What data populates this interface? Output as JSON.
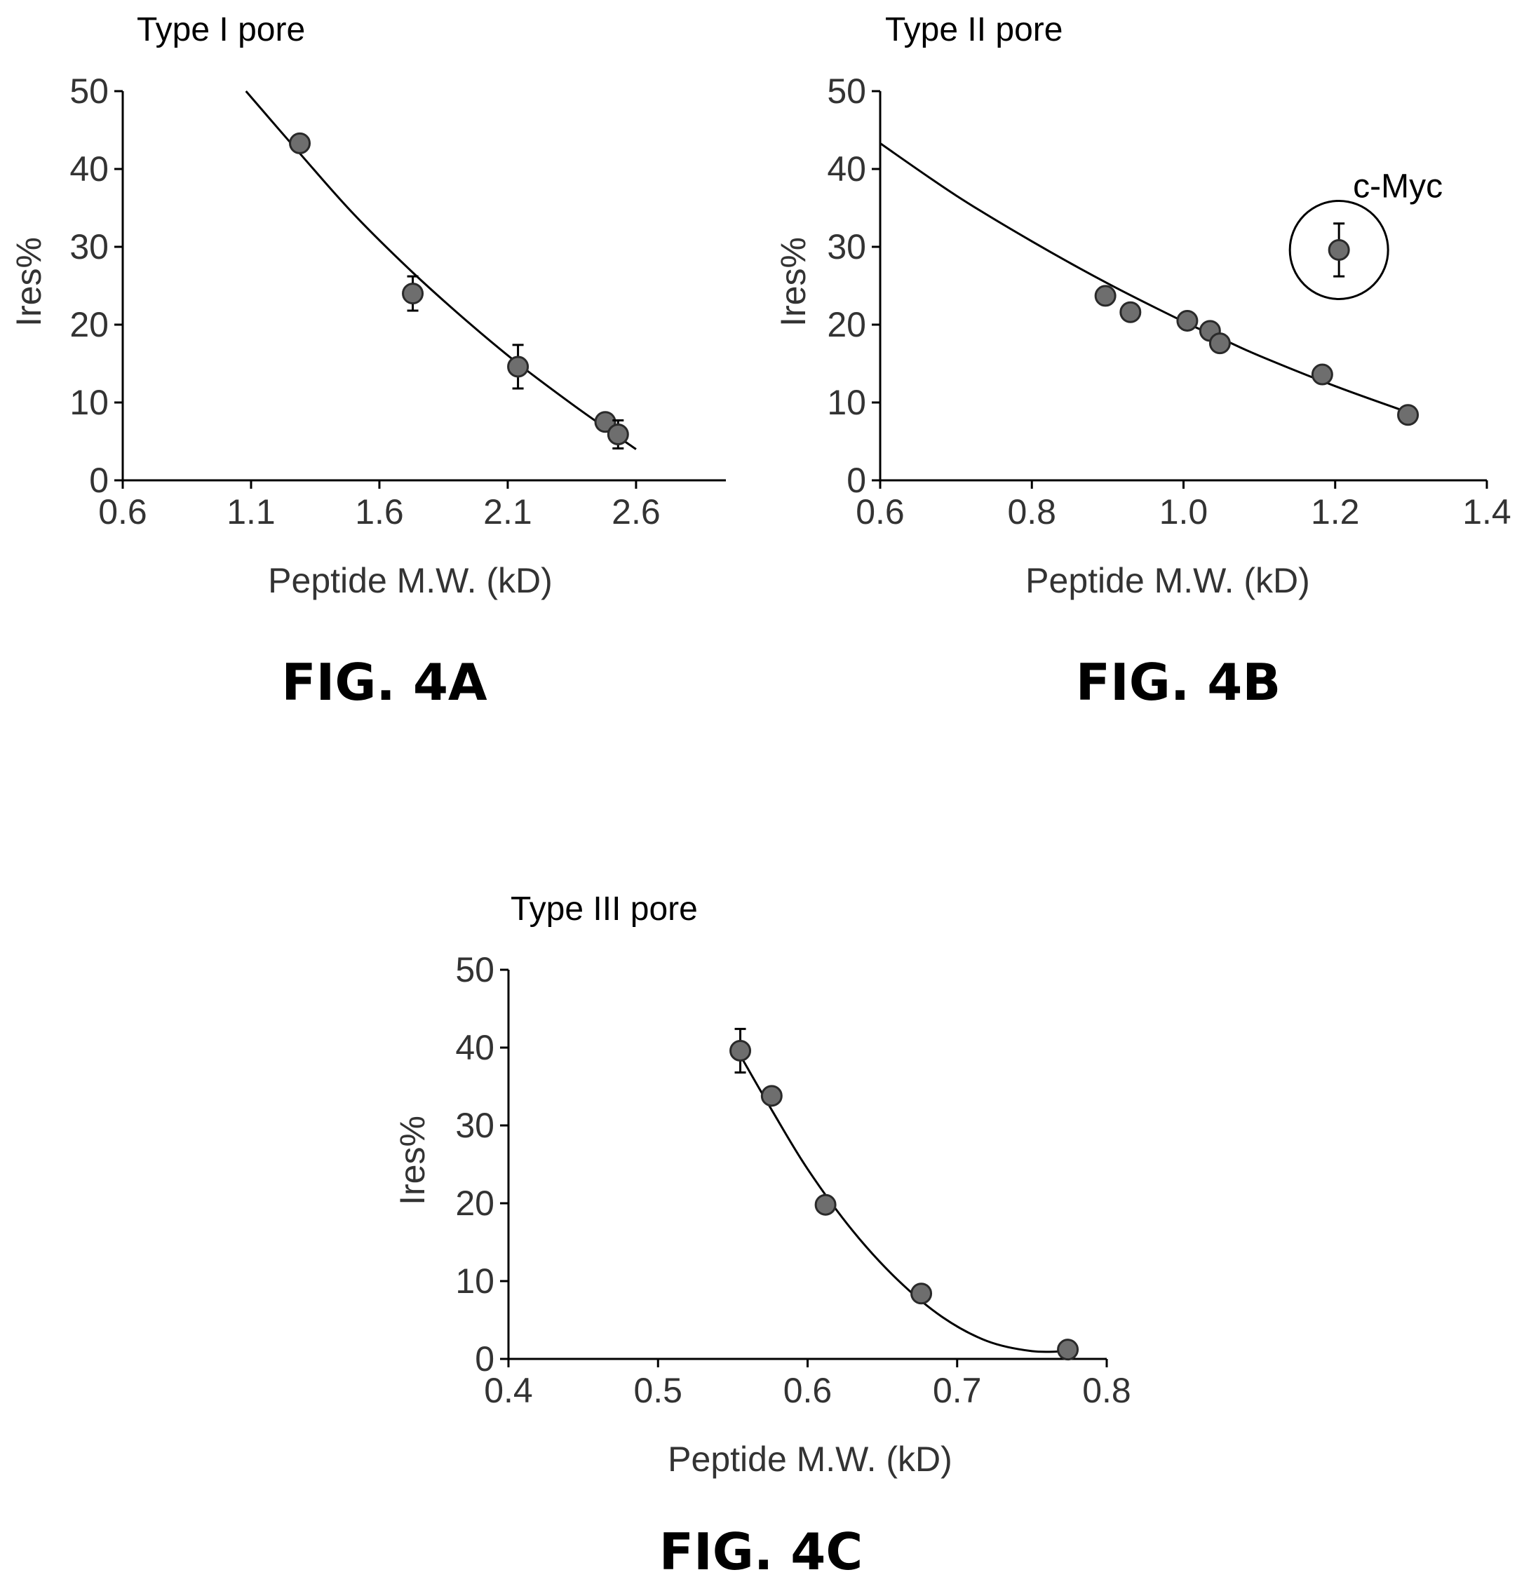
{
  "figures": [
    {
      "label": "FIG. 4A"
    },
    {
      "label": "FIG. 4B"
    },
    {
      "label": "FIG. 4C"
    }
  ],
  "chart_data": [
    {
      "type": "scatter",
      "title": "Type I pore",
      "xlabel": "Peptide M.W. (kD)",
      "ylabel": "Ires%",
      "xlim": [
        0.6,
        2.95
      ],
      "ylim": [
        0,
        50
      ],
      "xticks": [
        0.6,
        1.1,
        1.6,
        2.1,
        2.6
      ],
      "xtick_labels": [
        "0.6",
        "1.1",
        "1.6",
        "2.1",
        "2.6"
      ],
      "yticks": [
        0,
        10,
        20,
        30,
        40,
        50
      ],
      "ytick_labels": [
        "0",
        "10",
        "20",
        "30",
        "40",
        "50"
      ],
      "grid": false,
      "points": [
        {
          "x": 1.29,
          "y": 43.3,
          "err": 0.8
        },
        {
          "x": 1.73,
          "y": 24.0,
          "err": 2.2
        },
        {
          "x": 2.14,
          "y": 14.6,
          "err": 2.8
        },
        {
          "x": 2.48,
          "y": 7.5,
          "err": 0.8
        },
        {
          "x": 2.53,
          "y": 5.9,
          "err": 1.8
        }
      ],
      "fit": {
        "x": [
          1.08,
          1.29,
          1.5,
          1.73,
          1.95,
          2.14,
          2.35,
          2.53,
          2.6
        ],
        "y": [
          50.0,
          42.0,
          34.2,
          26.7,
          20.2,
          15.0,
          9.8,
          5.6,
          4.0
        ]
      },
      "annotations": []
    },
    {
      "type": "scatter",
      "title": "Type II pore",
      "xlabel": "Peptide M.W. (kD)",
      "ylabel": "Ires%",
      "xlim": [
        0.6,
        1.4
      ],
      "ylim": [
        0,
        50
      ],
      "xticks": [
        0.6,
        0.8,
        1.0,
        1.2,
        1.4
      ],
      "xtick_labels": [
        "0.6",
        "0.8",
        "1.0",
        "1.2",
        "1.4"
      ],
      "yticks": [
        0,
        10,
        20,
        30,
        40,
        50
      ],
      "ytick_labels": [
        "0",
        "10",
        "20",
        "30",
        "40",
        "50"
      ],
      "grid": false,
      "points": [
        {
          "x": 0.897,
          "y": 23.7,
          "err": 0
        },
        {
          "x": 0.93,
          "y": 21.6,
          "err": 0
        },
        {
          "x": 1.005,
          "y": 20.5,
          "err": 0
        },
        {
          "x": 1.035,
          "y": 19.2,
          "err": 0
        },
        {
          "x": 1.048,
          "y": 17.6,
          "err": 0
        },
        {
          "x": 1.183,
          "y": 13.6,
          "err": 0
        },
        {
          "x": 1.296,
          "y": 8.4,
          "err": 0
        },
        {
          "x": 1.205,
          "y": 29.6,
          "err": 3.4
        }
      ],
      "fit": {
        "x": [
          0.6,
          0.7,
          0.8,
          0.9,
          1.0,
          1.05,
          1.1,
          1.2,
          1.3
        ],
        "y": [
          43.3,
          36.6,
          30.7,
          25.3,
          20.4,
          18.2,
          16.0,
          12.1,
          8.6
        ]
      },
      "annotations": [
        {
          "text": "c-Myc",
          "x": 1.205,
          "y": 29.6
        }
      ]
    },
    {
      "type": "scatter",
      "title": "Type III pore",
      "xlabel": "Peptide M.W. (kD)",
      "ylabel": "Ires%",
      "xlim": [
        0.4,
        0.8
      ],
      "ylim": [
        0,
        50
      ],
      "xticks": [
        0.4,
        0.5,
        0.6,
        0.7,
        0.8
      ],
      "xtick_labels": [
        "0.4",
        "0.5",
        "0.6",
        "0.7",
        "0.8"
      ],
      "yticks": [
        0,
        10,
        20,
        30,
        40,
        50
      ],
      "ytick_labels": [
        "0",
        "10",
        "20",
        "30",
        "40",
        "50"
      ],
      "grid": false,
      "points": [
        {
          "x": 0.555,
          "y": 39.6,
          "err": 2.8
        },
        {
          "x": 0.576,
          "y": 33.8,
          "err": 0
        },
        {
          "x": 0.612,
          "y": 19.8,
          "err": 0
        },
        {
          "x": 0.676,
          "y": 8.4,
          "err": 0
        },
        {
          "x": 0.774,
          "y": 1.2,
          "err": 0
        }
      ],
      "fit": {
        "x": [
          0.555,
          0.576,
          0.6,
          0.63,
          0.66,
          0.69,
          0.72,
          0.75,
          0.774
        ],
        "y": [
          39.0,
          32.0,
          24.4,
          16.5,
          10.2,
          5.4,
          2.3,
          1.0,
          1.0
        ]
      },
      "annotations": []
    }
  ]
}
